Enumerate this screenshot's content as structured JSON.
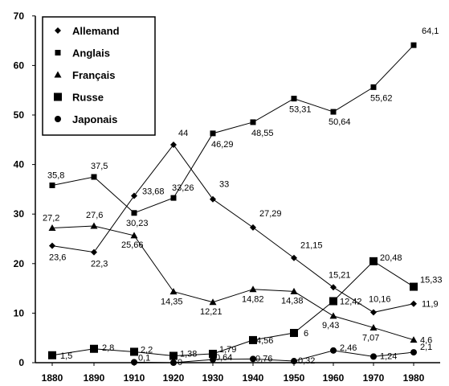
{
  "chart_data": {
    "type": "line",
    "title": "",
    "xlabel": "",
    "ylabel": "",
    "x": [
      1880,
      1890,
      1910,
      1920,
      1930,
      1940,
      1950,
      1960,
      1970,
      1980
    ],
    "ylim": [
      0,
      70
    ],
    "y_ticks": [
      0,
      10,
      20,
      30,
      40,
      50,
      60,
      70
    ],
    "grid": false,
    "legend_position": "top-left",
    "series": [
      {
        "name": "Allemand",
        "marker": "diamond",
        "values": [
          23.6,
          22.3,
          33.68,
          44,
          33,
          27.29,
          21.15,
          15.21,
          10.16,
          11.9
        ],
        "labels": [
          "23,6",
          "22,3",
          "33,68",
          "44",
          "33",
          "27,29",
          "21,15",
          "15,21",
          "10,16",
          "11,9"
        ]
      },
      {
        "name": "Anglais",
        "marker": "square",
        "values": [
          35.8,
          37.5,
          30.23,
          33.26,
          46.29,
          48.55,
          53.31,
          50.64,
          55.62,
          64.1
        ],
        "labels": [
          "35,8",
          "37,5",
          "30,23",
          "33,26",
          "46,29",
          "48,55",
          "53,31",
          "50,64",
          "55,62",
          "64,1"
        ]
      },
      {
        "name": "Français",
        "marker": "triangle",
        "values": [
          27.2,
          27.6,
          25.66,
          14.35,
          12.21,
          14.82,
          14.38,
          9.43,
          7.07,
          4.6
        ],
        "labels": [
          "27,2",
          "27,6",
          "25,66",
          "14,35",
          "12,21",
          "14,82",
          "14,38",
          "9,43",
          "7,07",
          "4,6"
        ]
      },
      {
        "name": "Russe",
        "marker": "big-square",
        "values": [
          1.5,
          2.8,
          2.2,
          1.38,
          1.79,
          4.56,
          6,
          12.42,
          20.48,
          15.33
        ],
        "labels": [
          "1,5",
          "2,8",
          "2,2",
          "1,38",
          "1,79",
          "4,56",
          "6",
          "12,42",
          "20,48",
          "15,33"
        ]
      },
      {
        "name": "Japonais",
        "marker": "circle",
        "values": [
          null,
          null,
          0.1,
          0,
          0.64,
          0.76,
          0.32,
          2.46,
          1.24,
          2.1
        ],
        "labels": [
          null,
          null,
          "0,1",
          "0",
          "0,64",
          "0,76",
          "0,32",
          "2,46",
          "1,24",
          "2,1"
        ]
      }
    ]
  }
}
